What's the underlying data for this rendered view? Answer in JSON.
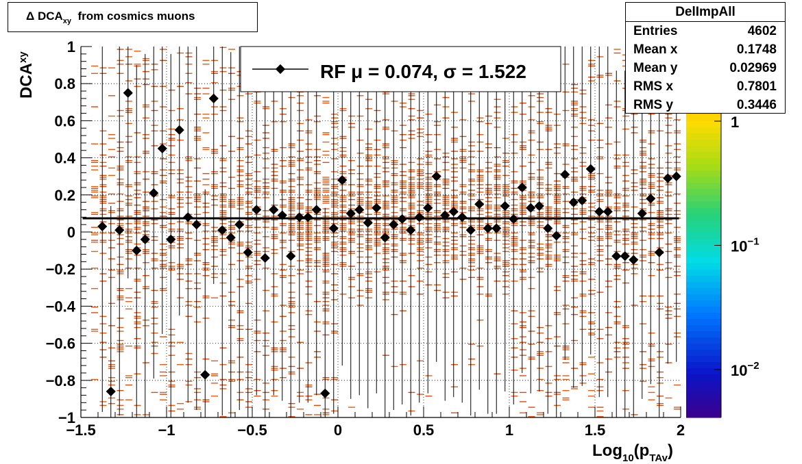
{
  "title": {
    "prefix": "Δ DCA",
    "sub": "xy",
    "suffix": "from cosmics muons"
  },
  "stats": {
    "name": "DelImpAll",
    "rows": [
      {
        "key": "Entries",
        "value": "4602"
      },
      {
        "key": "Mean x",
        "value": "0.1748"
      },
      {
        "key": "Mean y",
        "value": "0.02969"
      },
      {
        "key": "RMS x",
        "value": "0.7801"
      },
      {
        "key": "RMS y",
        "value": "0.3446"
      }
    ]
  },
  "legend": {
    "text": "RF μ =  0.074, σ =   1.522"
  },
  "palette": {
    "labels": [
      {
        "base": "1",
        "exp": "",
        "value": 1
      },
      {
        "base": "10",
        "exp": "−1",
        "value": 0.1
      },
      {
        "base": "10",
        "exp": "−2",
        "value": 0.01
      }
    ]
  },
  "chart_data": {
    "type": "scatter",
    "xlabel": {
      "base": "Log",
      "sub1": "10",
      "mid": "(p",
      "sub2": "TAv",
      "end": ")"
    },
    "ylabel": {
      "base": "DCA",
      "sub": "xy"
    },
    "xlim": [
      -1.5,
      2
    ],
    "ylim": [
      -1,
      1
    ],
    "x_ticks": [
      -1.5,
      -1,
      -0.5,
      0,
      0.5,
      1,
      1.5,
      2
    ],
    "x_tick_labels": [
      "−1.5",
      "−1",
      "−0.5",
      "0",
      "0.5",
      "1",
      "1.5",
      "2"
    ],
    "y_ticks": [
      -1,
      -0.8,
      -0.6,
      -0.4,
      -0.2,
      0,
      0.2,
      0.4,
      0.6,
      0.8,
      1
    ],
    "y_tick_labels": [
      "−1",
      "−0.8",
      "−0.6",
      "−0.4",
      "−0.2",
      "0",
      "0.2",
      "0.4",
      "0.6",
      "0.8",
      "1"
    ],
    "grid": true,
    "fit_line_y": 0.074,
    "profile_points": {
      "x": [
        -1.375,
        -1.325,
        -1.275,
        -1.225,
        -1.175,
        -1.125,
        -1.075,
        -1.025,
        -0.975,
        -0.925,
        -0.875,
        -0.825,
        -0.775,
        -0.725,
        -0.675,
        -0.625,
        -0.575,
        -0.525,
        -0.475,
        -0.425,
        -0.375,
        -0.325,
        -0.275,
        -0.225,
        -0.175,
        -0.125,
        -0.075,
        -0.025,
        0.025,
        0.075,
        0.125,
        0.175,
        0.225,
        0.275,
        0.325,
        0.375,
        0.425,
        0.475,
        0.525,
        0.575,
        0.625,
        0.675,
        0.725,
        0.775,
        0.825,
        0.875,
        0.925,
        0.975,
        1.025,
        1.075,
        1.125,
        1.175,
        1.225,
        1.275,
        1.325,
        1.375,
        1.425,
        1.475,
        1.525,
        1.575,
        1.625,
        1.675,
        1.725,
        1.775,
        1.825,
        1.875,
        1.925,
        1.975
      ],
      "y": [
        0.03,
        -0.86,
        0.01,
        0.75,
        -0.1,
        -0.04,
        0.21,
        0.45,
        -0.04,
        0.55,
        0.08,
        0.04,
        -0.77,
        0.72,
        0.01,
        -0.03,
        0.04,
        -0.11,
        0.12,
        -0.14,
        0.12,
        0.09,
        -0.13,
        0.08,
        0.08,
        0.12,
        -0.87,
        0.02,
        0.28,
        0.1,
        0.12,
        0.05,
        0.13,
        -0.03,
        0.04,
        0.07,
        0.01,
        0.08,
        0.13,
        0.3,
        0.09,
        0.11,
        0.08,
        0.01,
        0.15,
        0.02,
        0.02,
        0.14,
        0.07,
        0.24,
        0.13,
        0.14,
        0.02,
        -0.02,
        0.31,
        0.16,
        0.17,
        0.34,
        0.11,
        0.11,
        -0.13,
        -0.13,
        -0.15,
        0.1,
        0.18,
        -0.11,
        0.29,
        0.3
      ],
      "yerr_lo": 1.0,
      "yerr_hi": 1.0
    },
    "colz_dash_color": "#e85a10",
    "z_scale": "log"
  }
}
